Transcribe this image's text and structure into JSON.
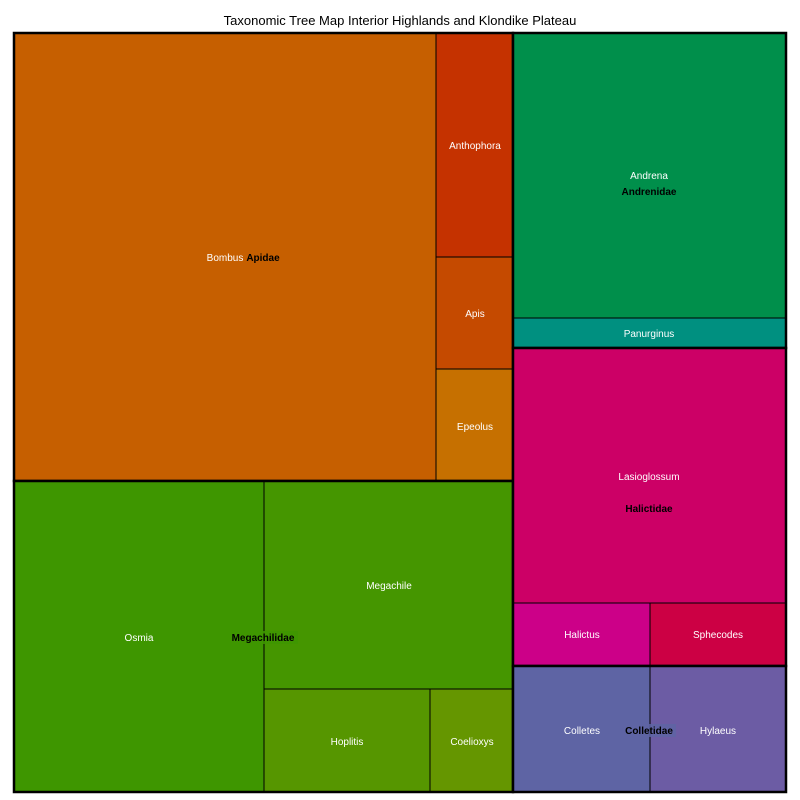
{
  "chart_data": {
    "type": "treemap",
    "title": "Taxonomic Tree Map Interior Highlands and Klondike Plateau",
    "families": [
      {
        "name": "Apidae",
        "color": "#c65f00",
        "genera": [
          {
            "name": "Bombus",
            "value": 189,
            "color": "#c65f00"
          },
          {
            "name": "Anthophora",
            "value": 17,
            "color": "#c53200"
          },
          {
            "name": "Apis",
            "value": 8.5,
            "color": "#c54a00"
          },
          {
            "name": "Epeolus",
            "value": 8.5,
            "color": "#c67000"
          }
        ]
      },
      {
        "name": "Megachilidae",
        "color": "#3e9600",
        "genera": [
          {
            "name": "Osmia",
            "value": 78,
            "color": "#3e9600"
          },
          {
            "name": "Megachile",
            "value": 52,
            "color": "#459600"
          },
          {
            "name": "Hoplitis",
            "value": 17,
            "color": "#569600"
          },
          {
            "name": "Coelioxys",
            "value": 8,
            "color": "#659600"
          }
        ]
      },
      {
        "name": "Andrenidae",
        "color": "#008f4b",
        "genera": [
          {
            "name": "Andrena",
            "value": 78,
            "color": "#008f4b"
          },
          {
            "name": "Panurginus",
            "value": 8,
            "color": "#009080"
          }
        ]
      },
      {
        "name": "Halictidae",
        "color": "#cc0066",
        "genera": [
          {
            "name": "Lasioglossum",
            "value": 69,
            "color": "#cc0066"
          },
          {
            "name": "Halictus",
            "value": 8.5,
            "color": "#cc0088"
          },
          {
            "name": "Sphecodes",
            "value": 8.5,
            "color": "#cc0044"
          }
        ]
      },
      {
        "name": "Colletidae",
        "color": "#5e64a4",
        "genera": [
          {
            "name": "Colletes",
            "value": 17,
            "color": "#5e64a4"
          },
          {
            "name": "Hylaeus",
            "value": 17,
            "color": "#6c5ca4"
          }
        ]
      }
    ]
  }
}
